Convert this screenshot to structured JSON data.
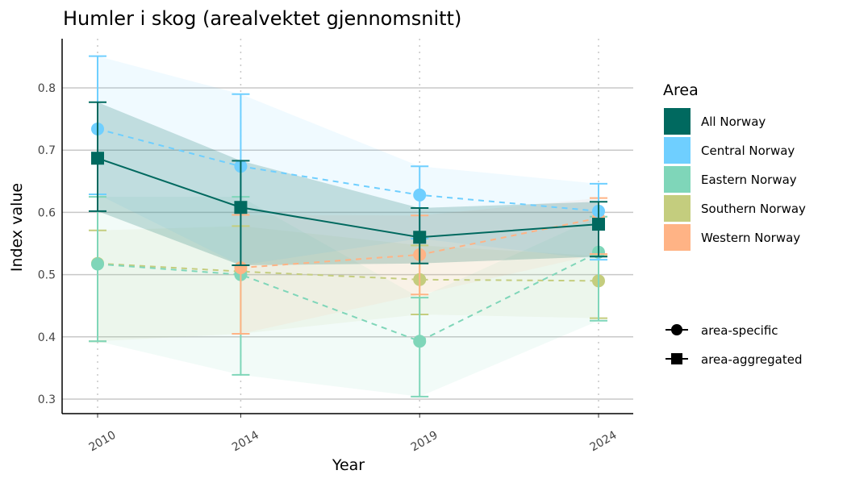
{
  "chart_data": {
    "type": "line",
    "title": "Humler i skog (arealvektet gjennomsnitt)",
    "xlabel": "Year",
    "ylabel": "Index value",
    "x": [
      2010,
      2014,
      2019,
      2024
    ],
    "xticks": [
      "2010",
      "2014",
      "2019",
      "2024"
    ],
    "ylim": [
      0.28,
      0.83
    ],
    "yticks": [
      0.3,
      0.4,
      0.5,
      0.6,
      0.7,
      0.8
    ],
    "ytick_labels": [
      "0.3",
      "0.4",
      "0.5",
      "0.6",
      "0.7",
      "0.8"
    ],
    "grid": "horizontal major; dotted vertical at data years",
    "legend_placement": "right",
    "legend_title": "Area",
    "shape_legend": [
      {
        "label": "area-specific",
        "shape": "circle"
      },
      {
        "label": "area-aggregated",
        "shape": "square"
      }
    ],
    "series": [
      {
        "name": "Southern Norway",
        "color": "#C4CD7E",
        "marker": "circle",
        "dash": true,
        "values": [
          0.518,
          0.505,
          0.492,
          0.49
        ],
        "lower": [
          0.393,
          0.405,
          0.436,
          0.43
        ],
        "upper": [
          0.571,
          0.578,
          0.547,
          0.53
        ]
      },
      {
        "name": "Eastern Norway",
        "color": "#7FD6B9",
        "marker": "circle",
        "dash": true,
        "values": [
          0.517,
          0.5,
          0.393,
          0.536
        ],
        "lower": [
          0.393,
          0.339,
          0.304,
          0.426
        ],
        "upper": [
          0.625,
          0.625,
          0.463,
          0.593
        ]
      },
      {
        "name": "Western Norway",
        "color": "#FFB385",
        "marker": "circle",
        "dash": true,
        "values": [
          null,
          0.511,
          0.532,
          0.591
        ],
        "lower": [
          null,
          0.405,
          0.468,
          0.533
        ],
        "upper": [
          null,
          0.596,
          0.595,
          0.623
        ]
      },
      {
        "name": "Central Norway",
        "color": "#6FCFFF",
        "marker": "circle",
        "dash": true,
        "values": [
          0.734,
          0.674,
          0.628,
          0.602
        ],
        "lower": [
          0.629,
          0.515,
          0.558,
          0.524
        ],
        "upper": [
          0.851,
          0.79,
          0.674,
          0.646
        ]
      },
      {
        "name": "All Norway",
        "color": "#00695F",
        "marker": "square",
        "dash": false,
        "values": [
          0.687,
          0.608,
          0.56,
          0.581
        ],
        "lower": [
          0.602,
          0.515,
          0.518,
          0.529
        ],
        "upper": [
          0.777,
          0.683,
          0.607,
          0.617
        ]
      }
    ],
    "legend_order": [
      "All Norway",
      "Central Norway",
      "Eastern Norway",
      "Southern Norway",
      "Western Norway"
    ]
  }
}
